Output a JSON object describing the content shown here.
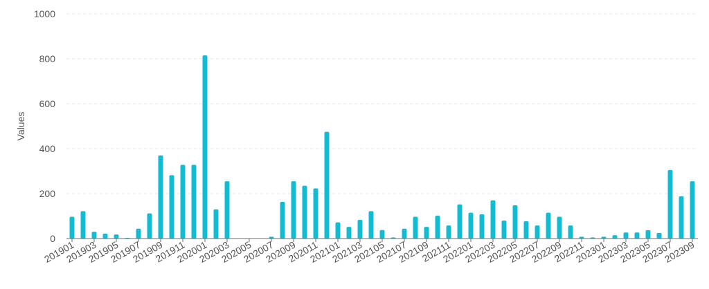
{
  "chart_data": {
    "type": "bar",
    "title": "",
    "xlabel": "",
    "ylabel": "Values",
    "ylim": [
      0,
      1000
    ],
    "yticks": [
      0,
      200,
      400,
      600,
      800,
      1000
    ],
    "grid": true,
    "legend": "none",
    "bar_color": "#12bcd4",
    "categories": [
      "201901",
      "201902",
      "201903",
      "201904",
      "201905",
      "201906",
      "201907",
      "201908",
      "201909",
      "201910",
      "201911",
      "201912",
      "202001",
      "202002",
      "202003",
      "202004",
      "202005",
      "202006",
      "202007",
      "202008",
      "202009",
      "202010",
      "202011",
      "202012",
      "202101",
      "202102",
      "202103",
      "202104",
      "202105",
      "202106",
      "202107",
      "202108",
      "202109",
      "202110",
      "202111",
      "202112",
      "202201",
      "202202",
      "202203",
      "202204",
      "202205",
      "202206",
      "202207",
      "202208",
      "202209",
      "202210",
      "202211",
      "202212",
      "202301",
      "202302",
      "202303",
      "202304",
      "202305",
      "202306",
      "202307",
      "202308",
      "202309"
    ],
    "values": [
      97,
      122,
      30,
      22,
      18,
      3,
      44,
      112,
      370,
      282,
      328,
      328,
      815,
      130,
      255,
      0,
      0,
      0,
      8,
      163,
      255,
      235,
      223,
      475,
      72,
      52,
      83,
      122,
      38,
      5,
      44,
      97,
      52,
      102,
      58,
      152,
      115,
      108,
      170,
      80,
      148,
      77,
      58,
      115,
      97,
      58,
      8,
      5,
      8,
      15,
      27,
      27,
      37,
      25,
      305,
      188,
      255
    ],
    "xtick_labels": [
      "201901",
      "201903",
      "201905",
      "201907",
      "201909",
      "201911",
      "202001",
      "202003",
      "202005",
      "202007",
      "202009",
      "202011",
      "202101",
      "202103",
      "202105",
      "202107",
      "202109",
      "202111",
      "202201",
      "202203",
      "202205",
      "202207",
      "202209",
      "202211",
      "202301",
      "202303",
      "202305",
      "202307",
      "202309"
    ]
  }
}
